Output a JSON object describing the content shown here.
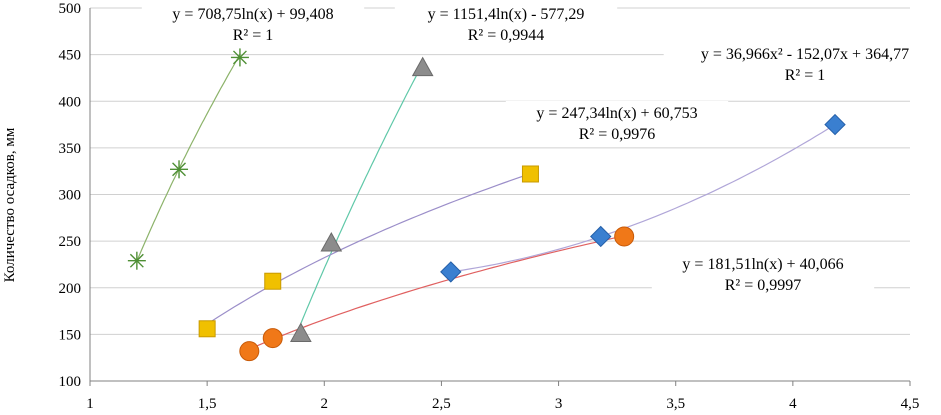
{
  "chart_data": {
    "type": "scatter",
    "title": "",
    "xlabel": "",
    "ylabel": "Количество осадков, мм",
    "xlim": [
      1,
      4.5
    ],
    "ylim": [
      100,
      500
    ],
    "x_ticks": [
      "1",
      "1,5",
      "2",
      "2,5",
      "3",
      "3,5",
      "4",
      "4,5"
    ],
    "y_ticks": [
      "100",
      "150",
      "200",
      "250",
      "300",
      "350",
      "400",
      "450",
      "500"
    ],
    "grid": "horizontal",
    "legend": "none",
    "series": [
      {
        "marker": "star",
        "color": "#4e8f34",
        "trend_color": "#8cb36a",
        "points": [
          [
            1.2,
            229
          ],
          [
            1.38,
            327
          ],
          [
            1.64,
            447
          ]
        ],
        "trendline": {
          "kind": "log",
          "a": 708.75,
          "b": 99.408
        },
        "equation": "y = 708,75ln(x) + 99,408",
        "r2": "R² = 1"
      },
      {
        "marker": "triangle",
        "color": "#8c8c8c",
        "trend_color": "#5fc8a8",
        "points": [
          [
            1.9,
            151
          ],
          [
            2.03,
            248
          ],
          [
            2.42,
            436
          ]
        ],
        "trendline": {
          "kind": "log",
          "a": 1151.4,
          "b": -577.29
        },
        "equation": "y = 1151,4ln(x) - 577,29",
        "r2": "R² = 0,9944"
      },
      {
        "marker": "square",
        "color": "#f0c000",
        "trend_color": "#9b8ec9",
        "points": [
          [
            1.5,
            156
          ],
          [
            1.78,
            207
          ],
          [
            2.88,
            322
          ]
        ],
        "trendline": {
          "kind": "log",
          "a": 247.34,
          "b": 60.753
        },
        "equation": "y = 247,34ln(x) + 60,753",
        "r2": "R² = 0,9976"
      },
      {
        "marker": "diamond",
        "color": "#3a7fd0",
        "trend_color": "#b0a6d8",
        "points": [
          [
            2.54,
            217
          ],
          [
            3.18,
            255
          ],
          [
            4.18,
            375
          ]
        ],
        "trendline": {
          "kind": "poly2",
          "a": 36.966,
          "b": -152.07,
          "c": 364.77
        },
        "equation": "y = 36,966x² - 152,07x + 364,77",
        "r2": "R² = 1"
      },
      {
        "marker": "circle",
        "color": "#f07818",
        "trend_color": "#e06060",
        "points": [
          [
            1.68,
            132
          ],
          [
            1.78,
            146
          ],
          [
            3.28,
            255
          ]
        ],
        "trendline": {
          "kind": "log",
          "a": 181.51,
          "b": 40.066
        },
        "equation": "y = 181,51ln(x) + 40,066",
        "r2": "R² = 0,9997"
      }
    ]
  }
}
